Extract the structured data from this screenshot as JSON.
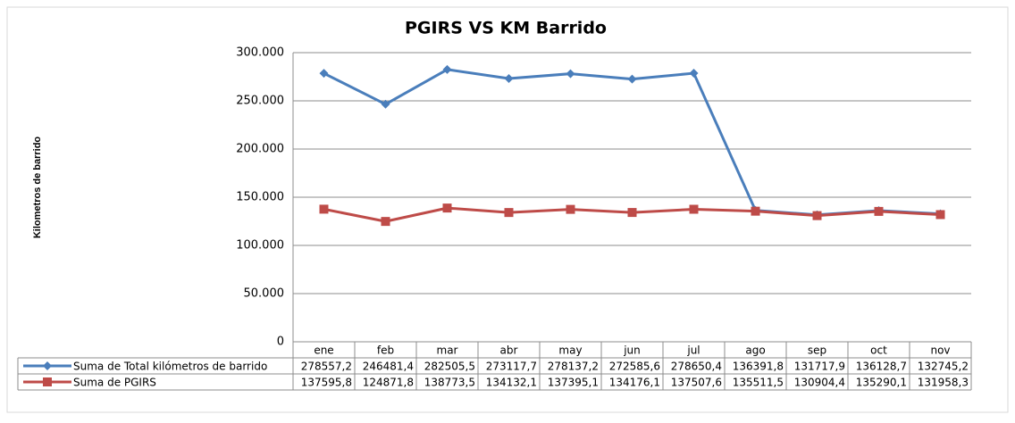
{
  "chart_data": {
    "type": "line",
    "title": "PGIRS VS KM Barrido",
    "y_label": "Kilometros de barrido",
    "categories": [
      "ene",
      "feb",
      "mar",
      "abr",
      "may",
      "jun",
      "jul",
      "ago",
      "sep",
      "oct",
      "nov"
    ],
    "series": [
      {
        "name": "Suma de Total kilómetros de barrido",
        "color": "#4a7ebb",
        "marker": "diamond",
        "values": [
          278557.2,
          246481.4,
          282505.5,
          273117.7,
          278137.2,
          272585.6,
          278650.4,
          136391.8,
          131717.9,
          136128.7,
          132745.2
        ],
        "value_labels": [
          "278557,2",
          "246481,4",
          "282505,5",
          "273117,7",
          "278137,2",
          "272585,6",
          "278650,4",
          "136391,8",
          "131717,9",
          "136128,7",
          "132745,2"
        ]
      },
      {
        "name": "Suma de PGIRS",
        "color": "#be4b48",
        "marker": "square",
        "values": [
          137595.8,
          124871.8,
          138773.5,
          134132.1,
          137395.1,
          134176.1,
          137507.6,
          135511.5,
          130904.4,
          135290.1,
          131958.3
        ],
        "value_labels": [
          "137595,8",
          "124871,8",
          "138773,5",
          "134132,1",
          "137395,1",
          "134176,1",
          "137507,6",
          "135511,5",
          "130904,4",
          "135290,1",
          "131958,3"
        ]
      }
    ],
    "ylim": [
      0,
      300000
    ],
    "yticks": [
      0,
      {
        "value": 50000,
        "label": "50.000"
      },
      {
        "value": 100000,
        "label": "100.000"
      },
      {
        "value": 150000,
        "label": "150.000"
      },
      {
        "value": 200000,
        "label": "200.000"
      },
      {
        "value": 250000,
        "label": "250.000"
      },
      {
        "value": 300000,
        "label": "300.000"
      }
    ],
    "grid": true,
    "data_table": true
  }
}
